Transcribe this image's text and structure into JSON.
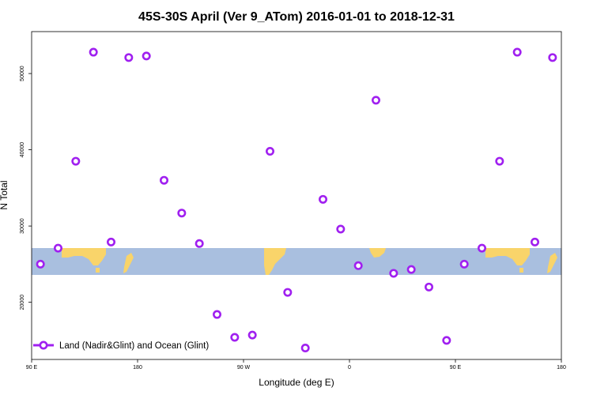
{
  "chart_data": {
    "type": "scatter",
    "title": "45S-30S April (Ver 9_ATom)   2016-01-01 to 2018-12-31",
    "xlabel": "Longitude (deg E)",
    "ylabel": "N Total",
    "x_ticks": [
      {
        "value": 90,
        "label": "90 E"
      },
      {
        "value": 180,
        "label": "180"
      },
      {
        "value": 270,
        "label": "90 W"
      },
      {
        "value": 360,
        "label": "0"
      },
      {
        "value": 450,
        "label": "90 E"
      },
      {
        "value": 540,
        "label": "180"
      }
    ],
    "y_ticks": [
      {
        "value": 20000,
        "label": "20000"
      },
      {
        "value": 30000,
        "label": "30000"
      },
      {
        "value": 40000,
        "label": "40000"
      },
      {
        "value": 50000,
        "label": "50000"
      }
    ],
    "xlim": [
      90,
      540
    ],
    "ylim": [
      12500,
      55500
    ],
    "grid": false,
    "legend_position": "bottom-left",
    "series": [
      {
        "name": "Land (Nadir&Glint) and Ocean (Glint)",
        "color": "#a020f0",
        "marker": "circle-open",
        "x": [
          97.5,
          112.5,
          127.5,
          142.5,
          157.5,
          172.5,
          187.5,
          202.5,
          217.5,
          232.5,
          247.5,
          262.5,
          277.5,
          292.5,
          307.5,
          322.5,
          337.5,
          352.5,
          367.5,
          382.5,
          397.5,
          412.5,
          427.5,
          442.5,
          457.5,
          472.5,
          487.5,
          502.5,
          517.5,
          532.5
        ],
        "y": [
          25000,
          27100,
          38500,
          52800,
          27900,
          52100,
          52300,
          36000,
          31700,
          27700,
          18400,
          15400,
          15700,
          39800,
          21300,
          14000,
          33500,
          29600,
          24800,
          46500,
          23800,
          24300,
          22000,
          15000,
          25000,
          27100,
          38500,
          52800,
          27900,
          52100
        ]
      }
    ]
  },
  "map_band": {
    "ocean_color": "#a9bfdf",
    "land_color": "#f9d46a"
  }
}
